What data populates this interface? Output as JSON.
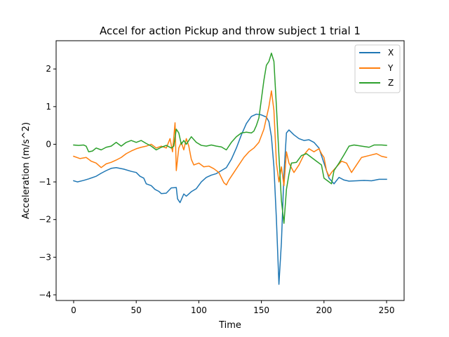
{
  "chart_data": {
    "type": "line",
    "title": "Accel for action Pickup and throw subject 1 trial 1",
    "xlabel": "Time",
    "ylabel": "Acceleration (m/s^2)",
    "xlim": [
      -14,
      264
    ],
    "ylim": [
      -4.15,
      2.75
    ],
    "xticks": [
      0,
      50,
      100,
      150,
      200,
      250
    ],
    "xtick_labels": [
      "0",
      "50",
      "100",
      "150",
      "200",
      "250"
    ],
    "yticks": [
      -4,
      -3,
      -2,
      -1,
      0,
      1,
      2
    ],
    "ytick_labels": [
      "−4",
      "−3",
      "−2",
      "−1",
      "0",
      "1",
      "2"
    ],
    "grid": false,
    "legend_position": "top-right",
    "series": [
      {
        "name": "X",
        "color": "#1f77b4",
        "points": [
          [
            0,
            -0.97
          ],
          [
            3,
            -1.0
          ],
          [
            8,
            -0.96
          ],
          [
            12,
            -0.92
          ],
          [
            18,
            -0.85
          ],
          [
            22,
            -0.77
          ],
          [
            26,
            -0.7
          ],
          [
            30,
            -0.64
          ],
          [
            34,
            -0.62
          ],
          [
            40,
            -0.66
          ],
          [
            46,
            -0.72
          ],
          [
            50,
            -0.75
          ],
          [
            53,
            -0.85
          ],
          [
            56,
            -0.9
          ],
          [
            58,
            -1.05
          ],
          [
            62,
            -1.1
          ],
          [
            65,
            -1.2
          ],
          [
            68,
            -1.25
          ],
          [
            70,
            -1.31
          ],
          [
            74,
            -1.3
          ],
          [
            78,
            -1.16
          ],
          [
            82,
            -1.15
          ],
          [
            83,
            -1.45
          ],
          [
            85,
            -1.55
          ],
          [
            88,
            -1.32
          ],
          [
            90,
            -1.38
          ],
          [
            94,
            -1.26
          ],
          [
            98,
            -1.18
          ],
          [
            102,
            -1.0
          ],
          [
            106,
            -0.88
          ],
          [
            110,
            -0.82
          ],
          [
            114,
            -0.78
          ],
          [
            118,
            -0.7
          ],
          [
            122,
            -0.62
          ],
          [
            126,
            -0.4
          ],
          [
            130,
            -0.1
          ],
          [
            134,
            0.25
          ],
          [
            138,
            0.55
          ],
          [
            142,
            0.74
          ],
          [
            146,
            0.8
          ],
          [
            150,
            0.78
          ],
          [
            154,
            0.72
          ],
          [
            156,
            0.6
          ],
          [
            158,
            0.2
          ],
          [
            160,
            -0.6
          ],
          [
            162,
            -2.0
          ],
          [
            164,
            -3.72
          ],
          [
            166,
            -2.6
          ],
          [
            168,
            -0.8
          ],
          [
            170,
            0.3
          ],
          [
            172,
            0.38
          ],
          [
            176,
            0.25
          ],
          [
            180,
            0.15
          ],
          [
            184,
            0.1
          ],
          [
            188,
            0.12
          ],
          [
            192,
            0.05
          ],
          [
            196,
            -0.1
          ],
          [
            200,
            -0.5
          ],
          [
            204,
            -0.9
          ],
          [
            208,
            -1.05
          ],
          [
            212,
            -0.88
          ],
          [
            216,
            -0.95
          ],
          [
            220,
            -0.98
          ],
          [
            226,
            -0.97
          ],
          [
            232,
            -0.96
          ],
          [
            238,
            -0.97
          ],
          [
            244,
            -0.93
          ],
          [
            250,
            -0.93
          ]
        ]
      },
      {
        "name": "Y",
        "color": "#ff7f0e",
        "points": [
          [
            0,
            -0.32
          ],
          [
            5,
            -0.38
          ],
          [
            10,
            -0.35
          ],
          [
            14,
            -0.45
          ],
          [
            18,
            -0.5
          ],
          [
            22,
            -0.62
          ],
          [
            26,
            -0.52
          ],
          [
            30,
            -0.48
          ],
          [
            34,
            -0.42
          ],
          [
            38,
            -0.35
          ],
          [
            42,
            -0.25
          ],
          [
            46,
            -0.18
          ],
          [
            50,
            -0.12
          ],
          [
            54,
            -0.08
          ],
          [
            58,
            -0.05
          ],
          [
            62,
            0.0
          ],
          [
            66,
            -0.1
          ],
          [
            70,
            -0.05
          ],
          [
            74,
            -0.1
          ],
          [
            77,
            0.15
          ],
          [
            79,
            -0.2
          ],
          [
            81,
            0.57
          ],
          [
            82,
            -0.7
          ],
          [
            84,
            -0.1
          ],
          [
            86,
            0.05
          ],
          [
            88,
            -0.15
          ],
          [
            90,
            0.15
          ],
          [
            92,
            -0.05
          ],
          [
            94,
            -0.4
          ],
          [
            96,
            -0.55
          ],
          [
            100,
            -0.5
          ],
          [
            104,
            -0.6
          ],
          [
            108,
            -0.58
          ],
          [
            112,
            -0.65
          ],
          [
            116,
            -0.75
          ],
          [
            120,
            -1.02
          ],
          [
            122,
            -1.08
          ],
          [
            124,
            -0.95
          ],
          [
            128,
            -0.75
          ],
          [
            132,
            -0.55
          ],
          [
            136,
            -0.35
          ],
          [
            140,
            -0.2
          ],
          [
            144,
            -0.1
          ],
          [
            148,
            0.05
          ],
          [
            152,
            0.4
          ],
          [
            156,
            1.0
          ],
          [
            158,
            1.42
          ],
          [
            160,
            0.9
          ],
          [
            162,
            -0.5
          ],
          [
            164,
            -1.0
          ],
          [
            166,
            -0.6
          ],
          [
            168,
            -1.1
          ],
          [
            170,
            -0.2
          ],
          [
            172,
            -0.5
          ],
          [
            176,
            -0.75
          ],
          [
            180,
            -0.55
          ],
          [
            184,
            -0.28
          ],
          [
            188,
            -0.12
          ],
          [
            192,
            -0.2
          ],
          [
            196,
            -0.12
          ],
          [
            198,
            -0.25
          ],
          [
            200,
            -0.35
          ],
          [
            202,
            -0.7
          ],
          [
            204,
            -0.85
          ],
          [
            206,
            -0.75
          ],
          [
            210,
            -0.6
          ],
          [
            214,
            -0.45
          ],
          [
            218,
            -0.5
          ],
          [
            222,
            -0.75
          ],
          [
            226,
            -0.55
          ],
          [
            230,
            -0.35
          ],
          [
            236,
            -0.3
          ],
          [
            242,
            -0.25
          ],
          [
            246,
            -0.32
          ],
          [
            250,
            -0.35
          ]
        ]
      },
      {
        "name": "Z",
        "color": "#2ca02c",
        "points": [
          [
            0,
            -0.02
          ],
          [
            4,
            -0.03
          ],
          [
            8,
            -0.02
          ],
          [
            10,
            -0.05
          ],
          [
            12,
            -0.2
          ],
          [
            15,
            -0.18
          ],
          [
            18,
            -0.1
          ],
          [
            22,
            -0.15
          ],
          [
            26,
            -0.08
          ],
          [
            30,
            -0.05
          ],
          [
            34,
            0.05
          ],
          [
            38,
            -0.05
          ],
          [
            42,
            0.05
          ],
          [
            46,
            0.1
          ],
          [
            50,
            0.05
          ],
          [
            54,
            0.1
          ],
          [
            58,
            0.02
          ],
          [
            62,
            -0.05
          ],
          [
            66,
            -0.15
          ],
          [
            70,
            -0.08
          ],
          [
            74,
            -0.03
          ],
          [
            78,
            -0.1
          ],
          [
            80,
            -0.05
          ],
          [
            82,
            0.4
          ],
          [
            84,
            0.3
          ],
          [
            86,
            0.0
          ],
          [
            88,
            0.1
          ],
          [
            90,
            0.0
          ],
          [
            94,
            0.2
          ],
          [
            98,
            0.05
          ],
          [
            102,
            -0.03
          ],
          [
            106,
            -0.05
          ],
          [
            110,
            -0.02
          ],
          [
            114,
            -0.05
          ],
          [
            118,
            -0.07
          ],
          [
            122,
            -0.15
          ],
          [
            126,
            0.05
          ],
          [
            130,
            0.2
          ],
          [
            134,
            0.3
          ],
          [
            138,
            0.32
          ],
          [
            142,
            0.3
          ],
          [
            144,
            0.35
          ],
          [
            146,
            0.5
          ],
          [
            148,
            0.7
          ],
          [
            150,
            1.2
          ],
          [
            152,
            1.7
          ],
          [
            154,
            2.1
          ],
          [
            156,
            2.2
          ],
          [
            158,
            2.42
          ],
          [
            160,
            2.2
          ],
          [
            162,
            1.0
          ],
          [
            164,
            -0.3
          ],
          [
            166,
            -1.5
          ],
          [
            168,
            -2.1
          ],
          [
            170,
            -1.2
          ],
          [
            172,
            -0.8
          ],
          [
            174,
            -0.5
          ],
          [
            178,
            -0.48
          ],
          [
            182,
            -0.3
          ],
          [
            186,
            -0.25
          ],
          [
            190,
            -0.35
          ],
          [
            194,
            -0.45
          ],
          [
            198,
            -0.55
          ],
          [
            200,
            -0.9
          ],
          [
            202,
            -0.95
          ],
          [
            206,
            -1.05
          ],
          [
            208,
            -0.7
          ],
          [
            212,
            -0.5
          ],
          [
            216,
            -0.28
          ],
          [
            220,
            -0.05
          ],
          [
            224,
            -0.02
          ],
          [
            230,
            -0.05
          ],
          [
            236,
            -0.08
          ],
          [
            240,
            -0.02
          ],
          [
            246,
            -0.02
          ],
          [
            250,
            -0.03
          ]
        ]
      }
    ]
  }
}
